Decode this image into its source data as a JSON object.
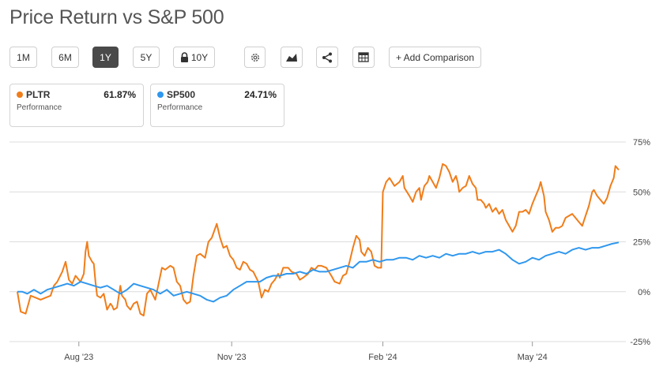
{
  "title": "Price Return vs S&P 500",
  "toolbar": {
    "ranges": [
      "1M",
      "6M",
      "1Y",
      "5Y",
      "10Y"
    ],
    "active_range": "1Y",
    "add_comparison": "+ Add Comparison",
    "icons": [
      "gear-icon",
      "chart-type-icon",
      "share-icon",
      "table-icon"
    ]
  },
  "legend": [
    {
      "ticker": "PLTR",
      "value": "61.87%",
      "label": "Performance",
      "color": "#f07d1a"
    },
    {
      "ticker": "SP500",
      "value": "24.71%",
      "label": "Performance",
      "color": "#2f97ee"
    }
  ],
  "chart_data": {
    "type": "line",
    "y_ticks": [
      "75%",
      "50%",
      "25%",
      "0%",
      "-25%"
    ],
    "y_values": [
      75,
      50,
      25,
      0,
      -25
    ],
    "ylim": [
      -25,
      75
    ],
    "x_ticks": [
      "Aug '23",
      "Nov '23",
      "Feb '24",
      "May '24"
    ],
    "x_tick_positions_days": [
      37,
      129,
      220,
      310
    ],
    "series": [
      {
        "name": "PLTR",
        "color": "#f07d1a",
        "points": [
          [
            0,
            0
          ],
          [
            2,
            -10
          ],
          [
            5,
            -11
          ],
          [
            8,
            -2
          ],
          [
            11,
            -3
          ],
          [
            14,
            -4
          ],
          [
            17,
            -3
          ],
          [
            20,
            -2
          ],
          [
            22,
            3
          ],
          [
            24,
            5
          ],
          [
            27,
            10
          ],
          [
            29,
            15
          ],
          [
            31,
            6
          ],
          [
            33,
            4
          ],
          [
            35,
            8
          ],
          [
            38,
            5
          ],
          [
            40,
            9
          ],
          [
            41,
            20
          ],
          [
            42,
            25
          ],
          [
            43,
            18
          ],
          [
            45,
            15
          ],
          [
            46,
            14
          ],
          [
            47,
            5
          ],
          [
            48,
            -2
          ],
          [
            50,
            -3
          ],
          [
            52,
            -1
          ],
          [
            54,
            -9
          ],
          [
            56,
            -6
          ],
          [
            57,
            -7
          ],
          [
            58,
            -9
          ],
          [
            60,
            -8
          ],
          [
            62,
            3
          ],
          [
            63,
            -2
          ],
          [
            65,
            -4
          ],
          [
            66,
            -7
          ],
          [
            68,
            -9
          ],
          [
            70,
            -6
          ],
          [
            72,
            -5
          ],
          [
            74,
            -11
          ],
          [
            76,
            -12
          ],
          [
            78,
            -1
          ],
          [
            80,
            1
          ],
          [
            83,
            -4
          ],
          [
            85,
            4
          ],
          [
            87,
            12
          ],
          [
            89,
            11
          ],
          [
            92,
            13
          ],
          [
            94,
            12
          ],
          [
            96,
            5
          ],
          [
            98,
            3
          ],
          [
            100,
            -4
          ],
          [
            102,
            -6
          ],
          [
            104,
            -5
          ],
          [
            106,
            8
          ],
          [
            108,
            18
          ],
          [
            110,
            19
          ],
          [
            113,
            17
          ],
          [
            115,
            25
          ],
          [
            117,
            27
          ],
          [
            120,
            34
          ],
          [
            122,
            27
          ],
          [
            124,
            22
          ],
          [
            126,
            23
          ],
          [
            128,
            18
          ],
          [
            130,
            16
          ],
          [
            132,
            12
          ],
          [
            134,
            11
          ],
          [
            136,
            15
          ],
          [
            138,
            14
          ],
          [
            140,
            11
          ],
          [
            142,
            10
          ],
          [
            145,
            5
          ],
          [
            147,
            -3
          ],
          [
            149,
            1
          ],
          [
            151,
            0
          ],
          [
            153,
            4
          ],
          [
            155,
            6
          ],
          [
            157,
            9
          ],
          [
            158,
            7
          ],
          [
            160,
            12
          ],
          [
            163,
            12
          ],
          [
            165,
            10
          ],
          [
            168,
            9
          ],
          [
            170,
            6
          ],
          [
            172,
            7
          ],
          [
            175,
            9
          ],
          [
            177,
            12
          ],
          [
            179,
            11
          ],
          [
            181,
            13
          ],
          [
            183,
            13
          ],
          [
            186,
            12
          ],
          [
            189,
            8
          ],
          [
            191,
            5
          ],
          [
            194,
            4
          ],
          [
            196,
            8
          ],
          [
            198,
            9
          ],
          [
            200,
            15
          ],
          [
            202,
            22
          ],
          [
            204,
            28
          ],
          [
            206,
            26
          ],
          [
            207,
            20
          ],
          [
            209,
            18
          ],
          [
            211,
            22
          ],
          [
            213,
            20
          ],
          [
            215,
            13
          ],
          [
            217,
            12
          ],
          [
            219,
            12
          ],
          [
            220,
            50
          ],
          [
            222,
            55
          ],
          [
            224,
            57
          ],
          [
            227,
            53
          ],
          [
            230,
            55
          ],
          [
            232,
            58
          ],
          [
            233,
            52
          ],
          [
            236,
            48
          ],
          [
            238,
            45
          ],
          [
            240,
            50
          ],
          [
            242,
            52
          ],
          [
            243,
            46
          ],
          [
            245,
            53
          ],
          [
            247,
            55
          ],
          [
            248,
            58
          ],
          [
            250,
            55
          ],
          [
            252,
            52
          ],
          [
            254,
            57
          ],
          [
            256,
            64
          ],
          [
            258,
            63
          ],
          [
            260,
            60
          ],
          [
            262,
            55
          ],
          [
            264,
            58
          ],
          [
            265,
            55
          ],
          [
            266,
            50
          ],
          [
            268,
            52
          ],
          [
            270,
            53
          ],
          [
            272,
            58
          ],
          [
            274,
            54
          ],
          [
            276,
            52
          ],
          [
            277,
            46
          ],
          [
            279,
            46
          ],
          [
            281,
            44
          ],
          [
            282,
            42
          ],
          [
            284,
            44
          ],
          [
            286,
            40
          ],
          [
            288,
            42
          ],
          [
            290,
            39
          ],
          [
            292,
            41
          ],
          [
            294,
            36
          ],
          [
            296,
            33
          ],
          [
            298,
            30
          ],
          [
            300,
            33
          ],
          [
            302,
            40
          ],
          [
            304,
            40
          ],
          [
            306,
            41
          ],
          [
            308,
            39
          ],
          [
            310,
            44
          ],
          [
            312,
            48
          ],
          [
            314,
            52
          ],
          [
            315,
            55
          ],
          [
            317,
            48
          ],
          [
            318,
            40
          ],
          [
            320,
            36
          ],
          [
            322,
            30
          ],
          [
            324,
            32
          ],
          [
            326,
            32
          ],
          [
            328,
            33
          ],
          [
            330,
            37
          ],
          [
            332,
            38
          ],
          [
            334,
            39
          ],
          [
            336,
            37
          ],
          [
            338,
            35
          ],
          [
            340,
            33
          ],
          [
            342,
            38
          ],
          [
            344,
            43
          ],
          [
            346,
            50
          ],
          [
            347,
            51
          ],
          [
            349,
            48
          ],
          [
            351,
            46
          ],
          [
            353,
            44
          ],
          [
            355,
            47
          ],
          [
            357,
            53
          ],
          [
            359,
            57
          ],
          [
            360,
            63
          ],
          [
            362,
            61
          ]
        ]
      },
      {
        "name": "SP500",
        "color": "#2f97ee",
        "points": [
          [
            0,
            0
          ],
          [
            3,
            0
          ],
          [
            6,
            -1
          ],
          [
            10,
            1
          ],
          [
            14,
            -1
          ],
          [
            18,
            1
          ],
          [
            22,
            2
          ],
          [
            26,
            3
          ],
          [
            30,
            4
          ],
          [
            34,
            3
          ],
          [
            38,
            5
          ],
          [
            42,
            4
          ],
          [
            46,
            3
          ],
          [
            50,
            2
          ],
          [
            54,
            3
          ],
          [
            58,
            1
          ],
          [
            62,
            -1
          ],
          [
            66,
            1
          ],
          [
            70,
            4
          ],
          [
            74,
            3
          ],
          [
            78,
            2
          ],
          [
            82,
            1
          ],
          [
            86,
            -1
          ],
          [
            90,
            1
          ],
          [
            94,
            -2
          ],
          [
            98,
            -1
          ],
          [
            102,
            0
          ],
          [
            106,
            -1
          ],
          [
            110,
            -2
          ],
          [
            114,
            -4
          ],
          [
            118,
            -5
          ],
          [
            122,
            -3
          ],
          [
            126,
            -2
          ],
          [
            130,
            1
          ],
          [
            134,
            3
          ],
          [
            138,
            5
          ],
          [
            142,
            5
          ],
          [
            146,
            5
          ],
          [
            150,
            7
          ],
          [
            154,
            8
          ],
          [
            158,
            8
          ],
          [
            162,
            9
          ],
          [
            166,
            9
          ],
          [
            170,
            10
          ],
          [
            174,
            9
          ],
          [
            178,
            11
          ],
          [
            182,
            10
          ],
          [
            186,
            10
          ],
          [
            190,
            11
          ],
          [
            194,
            12
          ],
          [
            198,
            13
          ],
          [
            202,
            12
          ],
          [
            206,
            15
          ],
          [
            210,
            15
          ],
          [
            214,
            16
          ],
          [
            218,
            15
          ],
          [
            222,
            16
          ],
          [
            226,
            16
          ],
          [
            230,
            17
          ],
          [
            234,
            17
          ],
          [
            238,
            16
          ],
          [
            242,
            18
          ],
          [
            246,
            17
          ],
          [
            250,
            18
          ],
          [
            254,
            17
          ],
          [
            258,
            19
          ],
          [
            262,
            18
          ],
          [
            266,
            19
          ],
          [
            270,
            19
          ],
          [
            274,
            20
          ],
          [
            278,
            19
          ],
          [
            282,
            20
          ],
          [
            286,
            20
          ],
          [
            290,
            21
          ],
          [
            294,
            19
          ],
          [
            298,
            16
          ],
          [
            302,
            14
          ],
          [
            306,
            15
          ],
          [
            310,
            17
          ],
          [
            314,
            16
          ],
          [
            318,
            18
          ],
          [
            322,
            19
          ],
          [
            326,
            20
          ],
          [
            330,
            19
          ],
          [
            334,
            21
          ],
          [
            338,
            22
          ],
          [
            342,
            21
          ],
          [
            346,
            22
          ],
          [
            350,
            22
          ],
          [
            354,
            23
          ],
          [
            358,
            24
          ],
          [
            362,
            24.7
          ]
        ]
      }
    ],
    "x_range_days": [
      0,
      362
    ]
  }
}
